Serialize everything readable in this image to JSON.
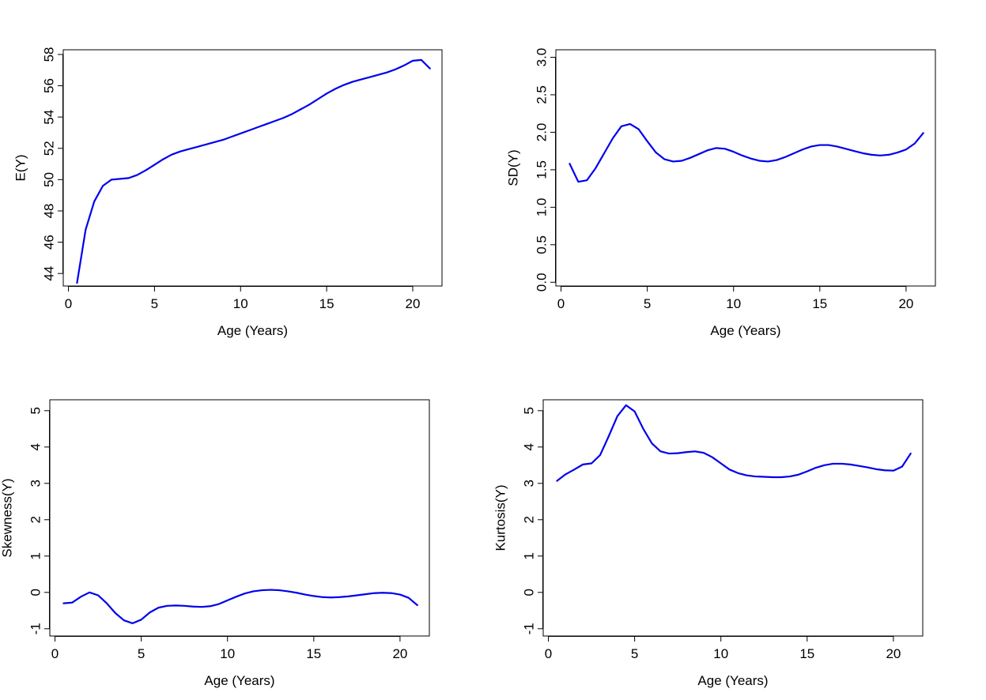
{
  "line_color": "#0000ee",
  "chart_data": [
    {
      "type": "line",
      "title": "",
      "xlabel": "Age (Years)",
      "ylabel": "E(Y)",
      "xlim": [
        -0.3,
        21.7
      ],
      "ylim": [
        43.2,
        58.3
      ],
      "xticks": [
        0,
        5,
        10,
        15,
        20
      ],
      "yticks": [
        44,
        46,
        48,
        50,
        52,
        54,
        56,
        58
      ],
      "series": [
        {
          "x": [
            0.5,
            1,
            1.5,
            2,
            2.5,
            3,
            3.5,
            4,
            4.5,
            5,
            5.5,
            6,
            6.5,
            7,
            7.5,
            8,
            8.5,
            9,
            9.5,
            10,
            10.5,
            11,
            11.5,
            12,
            12.5,
            13,
            13.5,
            14,
            14.5,
            15,
            15.5,
            16,
            16.5,
            17,
            17.5,
            18,
            18.5,
            19,
            19.5,
            20,
            20.5,
            21
          ],
          "y": [
            43.4,
            46.8,
            48.6,
            49.6,
            50.0,
            50.05,
            50.1,
            50.3,
            50.6,
            50.95,
            51.3,
            51.6,
            51.8,
            51.95,
            52.1,
            52.25,
            52.4,
            52.55,
            52.75,
            52.95,
            53.15,
            53.35,
            53.55,
            53.75,
            53.95,
            54.2,
            54.5,
            54.8,
            55.15,
            55.5,
            55.8,
            56.05,
            56.25,
            56.4,
            56.55,
            56.7,
            56.85,
            57.05,
            57.3,
            57.6,
            57.65,
            57.1
          ]
        }
      ]
    },
    {
      "type": "line",
      "title": "",
      "xlabel": "Age (Years)",
      "ylabel": "SD(Y)",
      "xlim": [
        -0.3,
        21.7
      ],
      "ylim": [
        -0.05,
        3.1
      ],
      "xticks": [
        0,
        5,
        10,
        15,
        20
      ],
      "yticks": [
        0.0,
        0.5,
        1.0,
        1.5,
        2.0,
        2.5,
        3.0
      ],
      "ytick_labels": [
        "0.0",
        "0.5",
        "1.0",
        "1.5",
        "2.0",
        "2.5",
        "3.0"
      ],
      "series": [
        {
          "x": [
            0.5,
            1,
            1.5,
            2,
            2.5,
            3,
            3.5,
            4,
            4.5,
            5,
            5.5,
            6,
            6.5,
            7,
            7.5,
            8,
            8.5,
            9,
            9.5,
            10,
            10.5,
            11,
            11.5,
            12,
            12.5,
            13,
            13.5,
            14,
            14.5,
            15,
            15.5,
            16,
            16.5,
            17,
            17.5,
            18,
            18.5,
            19,
            19.5,
            20,
            20.5,
            21
          ],
          "y": [
            1.58,
            1.34,
            1.36,
            1.52,
            1.72,
            1.92,
            2.08,
            2.11,
            2.04,
            1.88,
            1.73,
            1.64,
            1.61,
            1.62,
            1.66,
            1.71,
            1.76,
            1.79,
            1.78,
            1.74,
            1.69,
            1.65,
            1.62,
            1.61,
            1.63,
            1.67,
            1.72,
            1.77,
            1.81,
            1.83,
            1.83,
            1.81,
            1.78,
            1.75,
            1.72,
            1.7,
            1.69,
            1.7,
            1.73,
            1.77,
            1.85,
            1.99
          ]
        }
      ]
    },
    {
      "type": "line",
      "title": "",
      "xlabel": "Age (Years)",
      "ylabel": "Skewness(Y)",
      "xlim": [
        -0.3,
        21.7
      ],
      "ylim": [
        -1.2,
        5.3
      ],
      "xticks": [
        0,
        5,
        10,
        15,
        20
      ],
      "yticks": [
        -1,
        0,
        1,
        2,
        3,
        4,
        5
      ],
      "series": [
        {
          "x": [
            0.5,
            1,
            1.5,
            2,
            2.5,
            3,
            3.5,
            4,
            4.5,
            5,
            5.5,
            6,
            6.5,
            7,
            7.5,
            8,
            8.5,
            9,
            9.5,
            10,
            10.5,
            11,
            11.5,
            12,
            12.5,
            13,
            13.5,
            14,
            14.5,
            15,
            15.5,
            16,
            16.5,
            17,
            17.5,
            18,
            18.5,
            19,
            19.5,
            20,
            20.5,
            21
          ],
          "y": [
            -0.3,
            -0.28,
            -0.12,
            0.0,
            -0.08,
            -0.3,
            -0.57,
            -0.77,
            -0.85,
            -0.75,
            -0.55,
            -0.42,
            -0.37,
            -0.36,
            -0.37,
            -0.39,
            -0.4,
            -0.38,
            -0.32,
            -0.22,
            -0.12,
            -0.03,
            0.03,
            0.06,
            0.07,
            0.06,
            0.03,
            -0.01,
            -0.06,
            -0.1,
            -0.13,
            -0.14,
            -0.13,
            -0.11,
            -0.08,
            -0.05,
            -0.02,
            -0.01,
            -0.02,
            -0.06,
            -0.15,
            -0.35
          ]
        }
      ]
    },
    {
      "type": "line",
      "title": "",
      "xlabel": "Age (Years)",
      "ylabel": "Kurtosis(Y)",
      "xlim": [
        -0.3,
        21.7
      ],
      "ylim": [
        -1.2,
        5.3
      ],
      "xticks": [
        0,
        5,
        10,
        15,
        20
      ],
      "yticks": [
        -1,
        0,
        1,
        2,
        3,
        4,
        5
      ],
      "series": [
        {
          "x": [
            0.5,
            1,
            1.5,
            2,
            2.5,
            3,
            3.5,
            4,
            4.5,
            5,
            5.5,
            6,
            6.5,
            7,
            7.5,
            8,
            8.5,
            9,
            9.5,
            10,
            10.5,
            11,
            11.5,
            12,
            12.5,
            13,
            13.5,
            14,
            14.5,
            15,
            15.5,
            16,
            16.5,
            17,
            17.5,
            18,
            18.5,
            19,
            19.5,
            20,
            20.5,
            21
          ],
          "y": [
            3.07,
            3.25,
            3.38,
            3.52,
            3.55,
            3.78,
            4.3,
            4.85,
            5.15,
            4.98,
            4.5,
            4.1,
            3.88,
            3.82,
            3.83,
            3.86,
            3.88,
            3.84,
            3.72,
            3.55,
            3.38,
            3.28,
            3.22,
            3.19,
            3.18,
            3.17,
            3.17,
            3.19,
            3.24,
            3.33,
            3.43,
            3.5,
            3.54,
            3.54,
            3.52,
            3.48,
            3.44,
            3.39,
            3.36,
            3.35,
            3.46,
            3.82
          ]
        }
      ]
    }
  ]
}
